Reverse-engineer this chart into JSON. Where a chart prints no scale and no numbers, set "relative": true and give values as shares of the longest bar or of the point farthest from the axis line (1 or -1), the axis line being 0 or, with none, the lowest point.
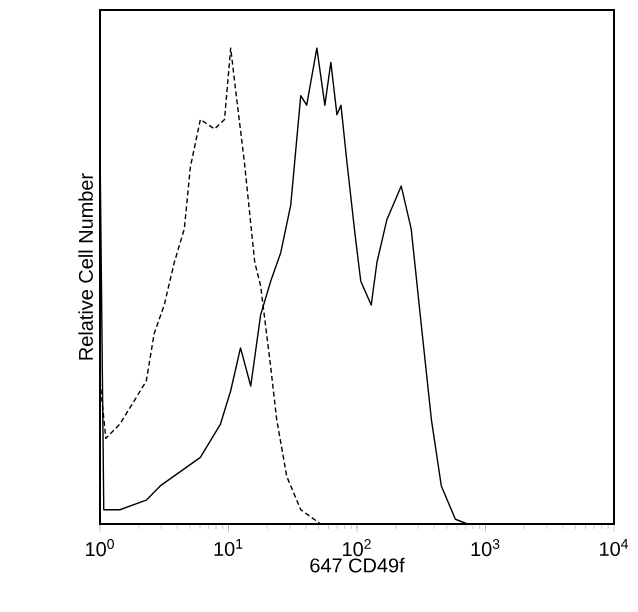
{
  "chart_data": {
    "type": "line",
    "relative": true,
    "xlabel": "647 CD49f",
    "ylabel": "Relative Cell Number",
    "log": "x",
    "xlim": [
      1,
      10000
    ],
    "xticks": [
      {
        "value": 1,
        "label": "10$^{0}$"
      },
      {
        "value": 10,
        "label": "10$^{1}$"
      },
      {
        "value": 100,
        "label": "10$^{2}$"
      },
      {
        "value": 1000,
        "label": "10$^{3}$"
      },
      {
        "value": 10000,
        "label": "10$^{4}$"
      }
    ],
    "tick_labels": "x",
    "grid": false,
    "legend": false,
    "marker": "none",
    "series": [
      {
        "color": "#000000",
        "line_style": "dashed",
        "x": [
          1.0,
          1.11,
          1.43,
          2.29,
          2.64,
          3.16,
          3.79,
          4.53,
          5.05,
          6.04,
          7.78,
          9.31,
          10.4,
          11.5,
          13.3,
          16.0,
          17.8,
          21.3,
          23.7,
          28.4,
          36.5,
          52.3,
          100,
          10000
        ],
        "values": [
          0.3,
          0.18,
          0.21,
          0.3,
          0.4,
          0.46,
          0.55,
          0.62,
          0.75,
          0.85,
          0.83,
          0.85,
          1.0,
          0.9,
          0.76,
          0.55,
          0.5,
          0.33,
          0.22,
          0.1,
          0.03,
          0.0,
          0.0,
          0.0
        ]
      },
      {
        "color": "#000000",
        "line_style": "solid",
        "x": [
          1.0,
          1.07,
          1.43,
          2.29,
          2.94,
          4.22,
          6.04,
          8.66,
          10.4,
          12.4,
          14.9,
          17.8,
          21.3,
          25.5,
          30.5,
          36.5,
          40.6,
          48.7,
          56.2,
          62.6,
          69.8,
          75.0,
          83.5,
          96.4,
          107,
          129,
          143,
          171,
          221,
          264,
          316,
          379,
          453,
          583,
          723,
          10000
        ],
        "values": [
          0.8,
          0.03,
          0.03,
          0.05,
          0.08,
          0.11,
          0.14,
          0.21,
          0.28,
          0.37,
          0.29,
          0.44,
          0.51,
          0.57,
          0.67,
          0.9,
          0.88,
          1.0,
          0.88,
          0.97,
          0.86,
          0.88,
          0.76,
          0.61,
          0.51,
          0.46,
          0.55,
          0.64,
          0.71,
          0.62,
          0.42,
          0.22,
          0.08,
          0.01,
          0.0,
          0.0
        ]
      }
    ]
  }
}
